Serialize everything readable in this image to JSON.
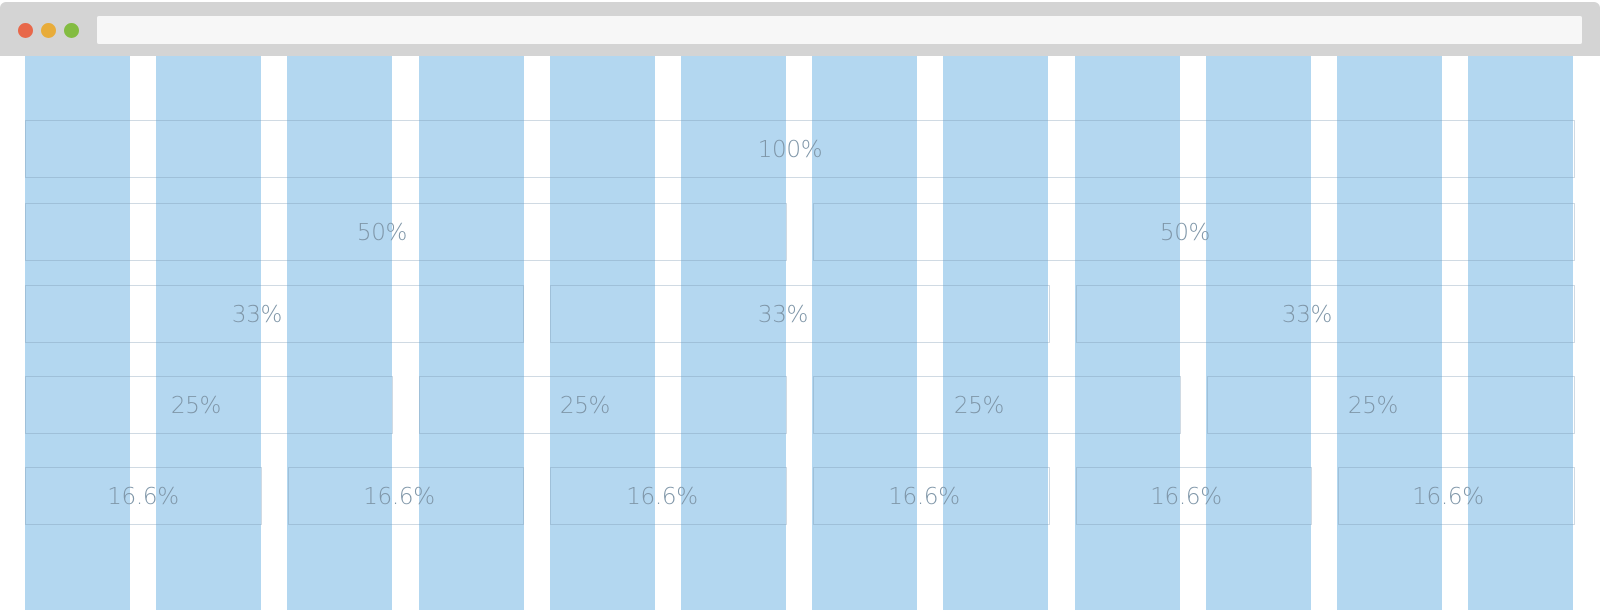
{
  "window": {
    "controls": [
      "close-icon",
      "minimize-icon",
      "zoom-icon"
    ],
    "address_bar": ""
  },
  "grid": {
    "columns": 12,
    "column_color": "#b3d7f0",
    "rows": [
      {
        "name": "row-100",
        "labels": [
          "100%"
        ]
      },
      {
        "name": "row-50",
        "labels": [
          "50%",
          "50%"
        ]
      },
      {
        "name": "row-33",
        "labels": [
          "33%",
          "33%",
          "33%"
        ]
      },
      {
        "name": "row-25",
        "labels": [
          "25%",
          "25%",
          "25%",
          "25%"
        ]
      },
      {
        "name": "row-16-6",
        "labels": [
          "16.6%",
          "16.6%",
          "16.6%",
          "16.6%",
          "16.6%",
          "16.6%"
        ]
      }
    ]
  }
}
